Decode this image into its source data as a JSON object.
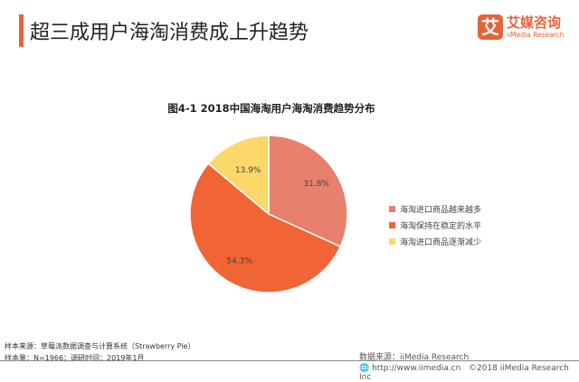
{
  "header": {
    "title": "超三成用户海淘消费成上升趋势",
    "logo_mark": "艾",
    "logo_cn": "艾媒咨询",
    "logo_en": "iiMedia Research"
  },
  "chart_data": {
    "type": "pie",
    "title": "图4-1 2018中国海淘用户海淘消费趋势分布",
    "categories": [
      "海淘进口商品越来越多",
      "海淘保持在稳定的水平",
      "海淘进口商品逐渐减少"
    ],
    "values": [
      31.8,
      54.3,
      13.9
    ],
    "labels": [
      "31.8%",
      "54.3%",
      "13.9%"
    ],
    "colors": [
      "#E8806E",
      "#F06436",
      "#FCD86A"
    ],
    "legend_position": "right"
  },
  "footer": {
    "source_sample": "样本来源：草莓派数据调查与计算系统（Strawberry  Pie）",
    "sample_size": "样本量：N=1966；调研时间：2019年1月",
    "data_source": "数据来源：iiMedia Research",
    "url": "http://www.iimedia.cn",
    "copyright": "©2018  iiMedia Research Inc"
  }
}
